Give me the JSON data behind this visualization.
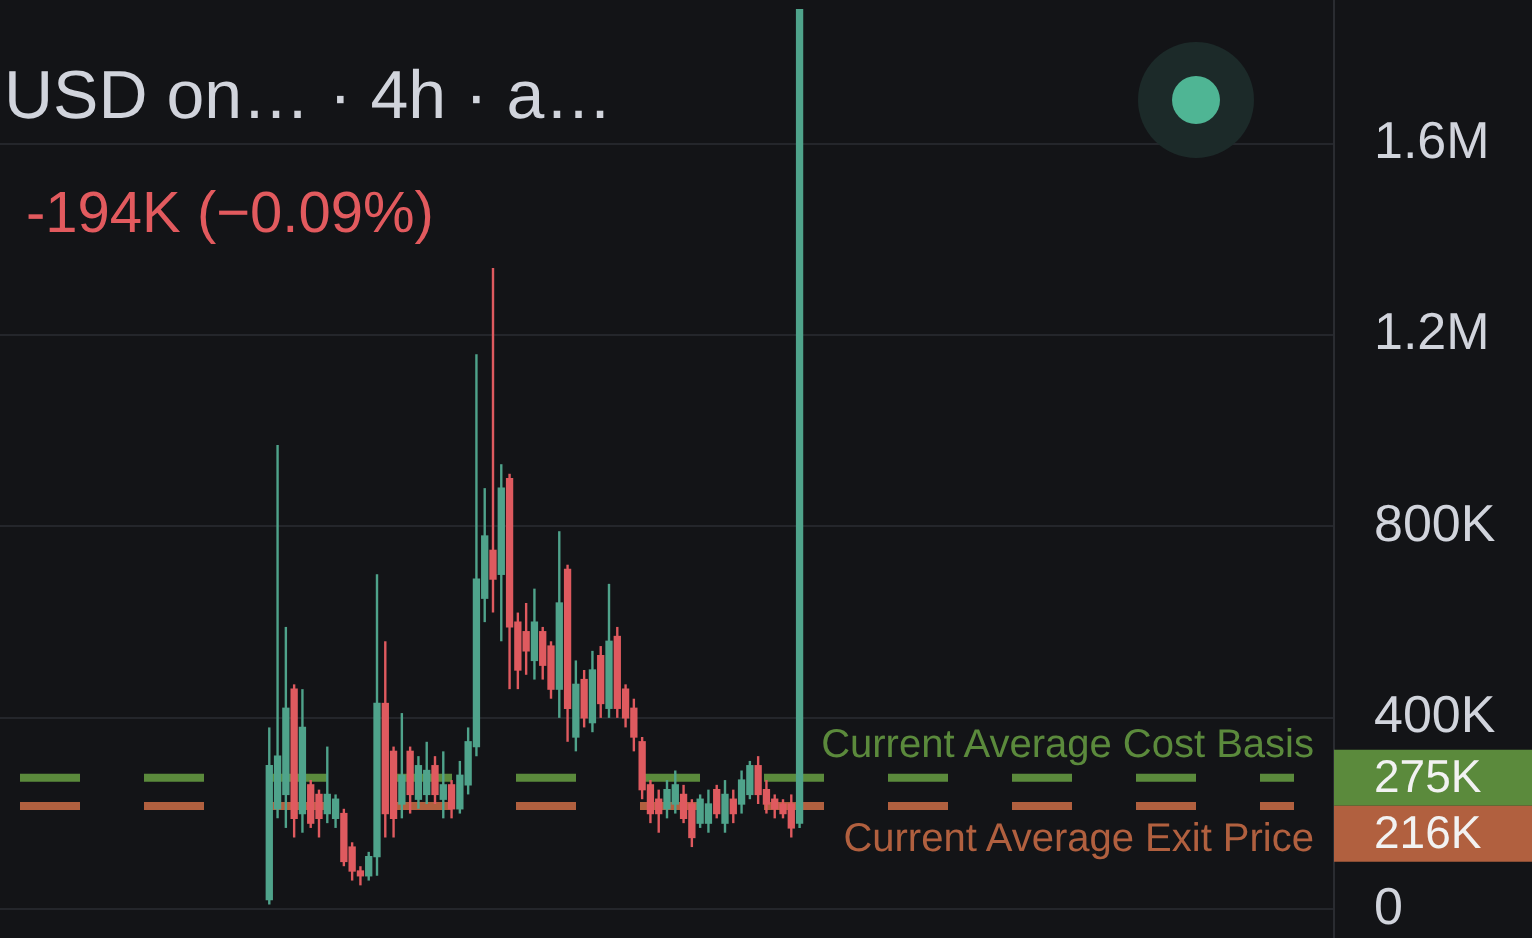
{
  "chart_data": {
    "type": "candlestick",
    "title": "USD on… · 4h · a…",
    "subtitle": "-194K (−0.09%)",
    "categories": [
      null,
      null,
      null,
      null,
      null,
      null,
      null,
      null,
      null,
      null,
      null,
      null,
      null,
      null,
      null,
      null,
      null,
      null,
      null,
      null,
      null,
      null,
      null,
      null,
      null,
      null,
      null,
      null,
      null,
      null,
      null,
      null,
      null,
      null,
      null,
      null,
      null,
      null,
      null,
      null,
      null,
      null,
      null,
      null,
      null,
      null,
      null,
      null,
      null,
      null,
      null,
      null,
      null,
      null,
      null,
      null,
      null,
      null,
      null,
      null,
      null,
      null,
      null,
      null,
      null,
      null,
      null,
      null,
      null,
      null,
      null,
      null,
      null,
      null,
      null,
      null,
      null,
      null,
      null,
      null,
      null,
      null,
      null,
      null,
      null,
      null,
      null,
      null,
      null,
      null,
      null,
      null,
      null,
      null,
      null,
      null,
      null,
      null,
      null,
      null,
      null,
      null,
      null,
      null,
      null,
      null,
      null,
      null,
      null,
      null,
      null,
      null,
      null,
      null,
      null,
      null,
      null,
      null,
      null,
      null,
      null,
      null,
      null,
      null,
      null,
      null,
      null,
      null,
      null,
      null,
      null,
      null,
      null,
      null,
      null,
      null,
      null,
      null,
      null,
      null,
      null,
      null,
      null,
      null,
      null,
      null,
      null,
      null,
      null,
      null,
      null,
      null,
      null,
      null,
      null,
      null,
      null,
      null,
      null,
      null,
      null
    ],
    "ohlc": [
      null,
      null,
      null,
      null,
      null,
      null,
      null,
      null,
      null,
      null,
      null,
      null,
      null,
      null,
      null,
      null,
      null,
      null,
      null,
      null,
      null,
      null,
      null,
      null,
      null,
      null,
      null,
      null,
      null,
      null,
      null,
      null,
      [
        20000,
        380000,
        10000,
        300000
      ],
      [
        210000,
        970000,
        190000,
        320000
      ],
      [
        240000,
        590000,
        170000,
        420000
      ],
      [
        460000,
        470000,
        150000,
        190000
      ],
      [
        200000,
        460000,
        160000,
        380000
      ],
      [
        260000,
        270000,
        170000,
        180000
      ],
      [
        240000,
        250000,
        150000,
        190000
      ],
      [
        200000,
        340000,
        180000,
        240000
      ],
      [
        190000,
        240000,
        170000,
        230000
      ],
      [
        200000,
        210000,
        90000,
        100000
      ],
      [
        130000,
        140000,
        60000,
        80000
      ],
      [
        80000,
        90000,
        50000,
        70000
      ],
      [
        70000,
        120000,
        60000,
        110000
      ],
      [
        110000,
        700000,
        70000,
        430000
      ],
      [
        430000,
        560000,
        150000,
        200000
      ],
      [
        330000,
        340000,
        150000,
        190000
      ],
      [
        220000,
        410000,
        190000,
        280000
      ],
      [
        330000,
        340000,
        200000,
        240000
      ],
      [
        230000,
        320000,
        210000,
        300000
      ],
      [
        240000,
        350000,
        220000,
        290000
      ],
      [
        300000,
        320000,
        220000,
        240000
      ],
      [
        230000,
        330000,
        190000,
        260000
      ],
      [
        260000,
        270000,
        190000,
        210000
      ],
      [
        210000,
        310000,
        200000,
        280000
      ],
      [
        260000,
        380000,
        240000,
        350000
      ],
      [
        340000,
        1160000,
        320000,
        690000
      ],
      [
        650000,
        880000,
        600000,
        780000
      ],
      [
        750000,
        1340000,
        620000,
        690000
      ],
      [
        700000,
        930000,
        560000,
        880000
      ],
      [
        900000,
        910000,
        460000,
        590000
      ],
      [
        600000,
        620000,
        460000,
        500000
      ],
      [
        580000,
        640000,
        490000,
        540000
      ],
      [
        520000,
        670000,
        480000,
        600000
      ],
      [
        580000,
        590000,
        480000,
        510000
      ],
      [
        550000,
        560000,
        440000,
        460000
      ],
      [
        460000,
        790000,
        400000,
        640000
      ],
      [
        710000,
        720000,
        350000,
        420000
      ],
      [
        360000,
        520000,
        330000,
        470000
      ],
      [
        480000,
        500000,
        380000,
        400000
      ],
      [
        390000,
        540000,
        370000,
        500000
      ],
      [
        530000,
        550000,
        400000,
        430000
      ],
      [
        420000,
        680000,
        400000,
        560000
      ],
      [
        570000,
        590000,
        400000,
        420000
      ],
      [
        460000,
        470000,
        380000,
        400000
      ],
      [
        420000,
        440000,
        330000,
        360000
      ],
      [
        350000,
        360000,
        230000,
        250000
      ],
      [
        260000,
        270000,
        180000,
        200000
      ],
      [
        230000,
        250000,
        160000,
        200000
      ],
      [
        210000,
        270000,
        190000,
        250000
      ],
      [
        220000,
        290000,
        200000,
        260000
      ],
      [
        240000,
        260000,
        180000,
        190000
      ],
      [
        220000,
        230000,
        130000,
        150000
      ],
      [
        180000,
        240000,
        170000,
        230000
      ],
      [
        180000,
        250000,
        160000,
        220000
      ],
      [
        250000,
        260000,
        190000,
        200000
      ],
      [
        180000,
        270000,
        160000,
        240000
      ],
      [
        230000,
        250000,
        180000,
        200000
      ],
      [
        220000,
        290000,
        200000,
        270000
      ],
      [
        240000,
        310000,
        230000,
        300000
      ],
      [
        300000,
        320000,
        220000,
        240000
      ],
      [
        250000,
        270000,
        200000,
        220000
      ],
      [
        230000,
        240000,
        190000,
        210000
      ],
      [
        220000,
        230000,
        190000,
        200000
      ],
      [
        220000,
        240000,
        150000,
        170000
      ],
      [
        180000,
        1880000,
        170000,
        1880000
      ],
      null,
      null,
      null,
      null,
      null,
      null,
      null,
      null,
      null,
      null,
      null,
      null,
      null,
      null,
      null,
      null,
      null,
      null,
      null,
      null,
      null,
      null,
      null,
      null,
      null,
      null,
      null,
      null,
      null,
      null,
      null,
      null,
      null,
      null,
      null,
      null,
      null,
      null,
      null,
      null,
      null,
      null,
      null,
      null,
      null,
      null,
      null,
      null,
      null,
      null,
      null,
      null,
      null,
      null,
      null,
      null,
      null,
      null,
      null,
      null,
      null,
      null,
      null,
      null
    ],
    "colors": [
      null,
      null,
      null,
      null,
      null,
      null,
      null,
      null,
      null,
      null,
      null,
      null,
      null,
      null,
      null,
      null,
      null,
      null,
      null,
      null,
      null,
      null,
      null,
      null,
      null,
      null,
      null,
      null,
      null,
      null,
      null,
      null,
      "#4fa38b",
      "#4fa38b",
      "#4fa38b",
      "#df5a5f",
      "#4fa38b",
      "#df5a5f",
      "#df5a5f",
      "#4fa38b",
      "#4fa38b",
      "#df5a5f",
      "#df5a5f",
      "#df5a5f",
      "#4fa38b",
      "#4fa38b",
      "#df5a5f",
      "#df5a5f",
      "#4fa38b",
      "#df5a5f",
      "#4fa38b",
      "#4fa38b",
      "#df5a5f",
      "#4fa38b",
      "#df5a5f",
      "#4fa38b",
      "#4fa38b",
      "#4fa38b",
      "#4fa38b",
      "#df5a5f",
      "#4fa38b",
      "#df5a5f",
      "#df5a5f",
      "#df5a5f",
      "#4fa38b",
      "#df5a5f",
      "#df5a5f",
      "#4fa38b",
      "#df5a5f",
      "#4fa38b",
      "#df5a5f",
      "#4fa38b",
      "#df5a5f",
      "#4fa38b",
      "#df5a5f",
      "#df5a5f",
      "#df5a5f",
      "#df5a5f",
      "#df5a5f",
      "#df5a5f",
      "#4fa38b",
      "#4fa38b",
      "#df5a5f",
      "#df5a5f",
      "#4fa38b",
      "#4fa38b",
      "#df5a5f",
      "#4fa38b",
      "#df5a5f",
      "#4fa38b",
      "#4fa38b",
      "#df5a5f",
      "#df5a5f",
      "#df5a5f",
      "#df5a5f",
      "#df5a5f",
      "#4fa38b",
      null,
      null,
      null,
      null,
      null,
      null,
      null,
      null,
      null,
      null,
      null,
      null,
      null,
      null,
      null,
      null,
      null,
      null,
      null,
      null,
      null,
      null,
      null,
      null,
      null,
      null,
      null,
      null,
      null,
      null,
      null,
      null,
      null,
      null,
      null,
      null,
      null,
      null,
      null,
      null,
      null,
      null,
      null,
      null,
      null,
      null,
      null,
      null,
      null,
      null,
      null,
      null,
      null,
      null,
      null,
      null,
      null,
      null,
      null,
      null,
      null,
      null,
      null,
      null
    ],
    "ylim": [
      -60000,
      1900000
    ],
    "yticks": [
      0,
      {
        "value": 400000,
        "label": "400K"
      },
      {
        "value": 800000,
        "label": "800K"
      },
      {
        "value": 1200000,
        "label": "1.2M"
      },
      {
        "value": 1600000,
        "label": "1.6M"
      }
    ],
    "grid": "y",
    "ref_lines": [
      {
        "axis": "y",
        "value": 275000,
        "label": "Current Average Cost Basis",
        "color": "#5b8a3c",
        "line_style": "dashed"
      },
      {
        "axis": "y",
        "value": 216000,
        "label": "Current Average Exit Price",
        "color": "#b1603f",
        "line_style": "dashed"
      }
    ],
    "annotations": [
      "275K",
      "216K"
    ]
  }
}
